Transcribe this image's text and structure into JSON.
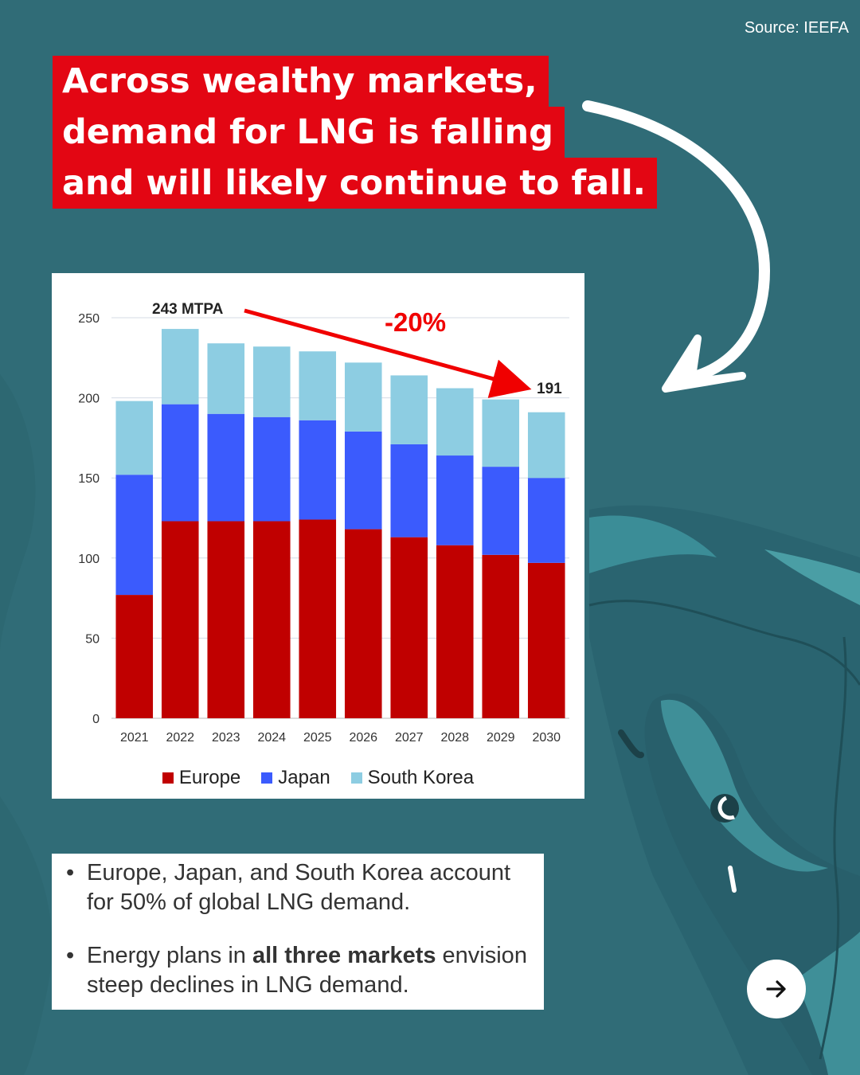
{
  "source": "Source: IEEFA",
  "headline": {
    "lines": [
      "Across wealthy markets,",
      "demand for LNG is falling",
      "and will likely continue to fall."
    ]
  },
  "chart_data": {
    "type": "bar",
    "stacked": true,
    "categories": [
      "2021",
      "2022",
      "2023",
      "2024",
      "2025",
      "2026",
      "2027",
      "2028",
      "2029",
      "2030"
    ],
    "series": [
      {
        "name": "Europe",
        "color": "#c00000",
        "values": [
          77,
          123,
          123,
          123,
          124,
          118,
          113,
          108,
          102,
          97
        ]
      },
      {
        "name": "Japan",
        "color": "#3b5bfd",
        "values": [
          75,
          73,
          67,
          65,
          62,
          61,
          58,
          56,
          55,
          53
        ]
      },
      {
        "name": "South Korea",
        "color": "#8dcde2",
        "values": [
          46,
          47,
          44,
          44,
          43,
          43,
          43,
          42,
          42,
          41
        ]
      }
    ],
    "ylim": [
      0,
      250
    ],
    "yticks": [
      0,
      50,
      100,
      150,
      200,
      250
    ],
    "grid": true,
    "annotations": {
      "start_label": "243 MTPA",
      "change_label": "-20%",
      "end_label": "191"
    }
  },
  "notes": [
    {
      "text": "Europe, Japan, and South Korea account for 50% of global LNG demand."
    },
    {
      "pre": "Energy plans in ",
      "bold": "all three markets",
      "post": " envision steep declines in LNG demand."
    }
  ],
  "nav": {
    "next_icon": "arrow-right-icon"
  }
}
